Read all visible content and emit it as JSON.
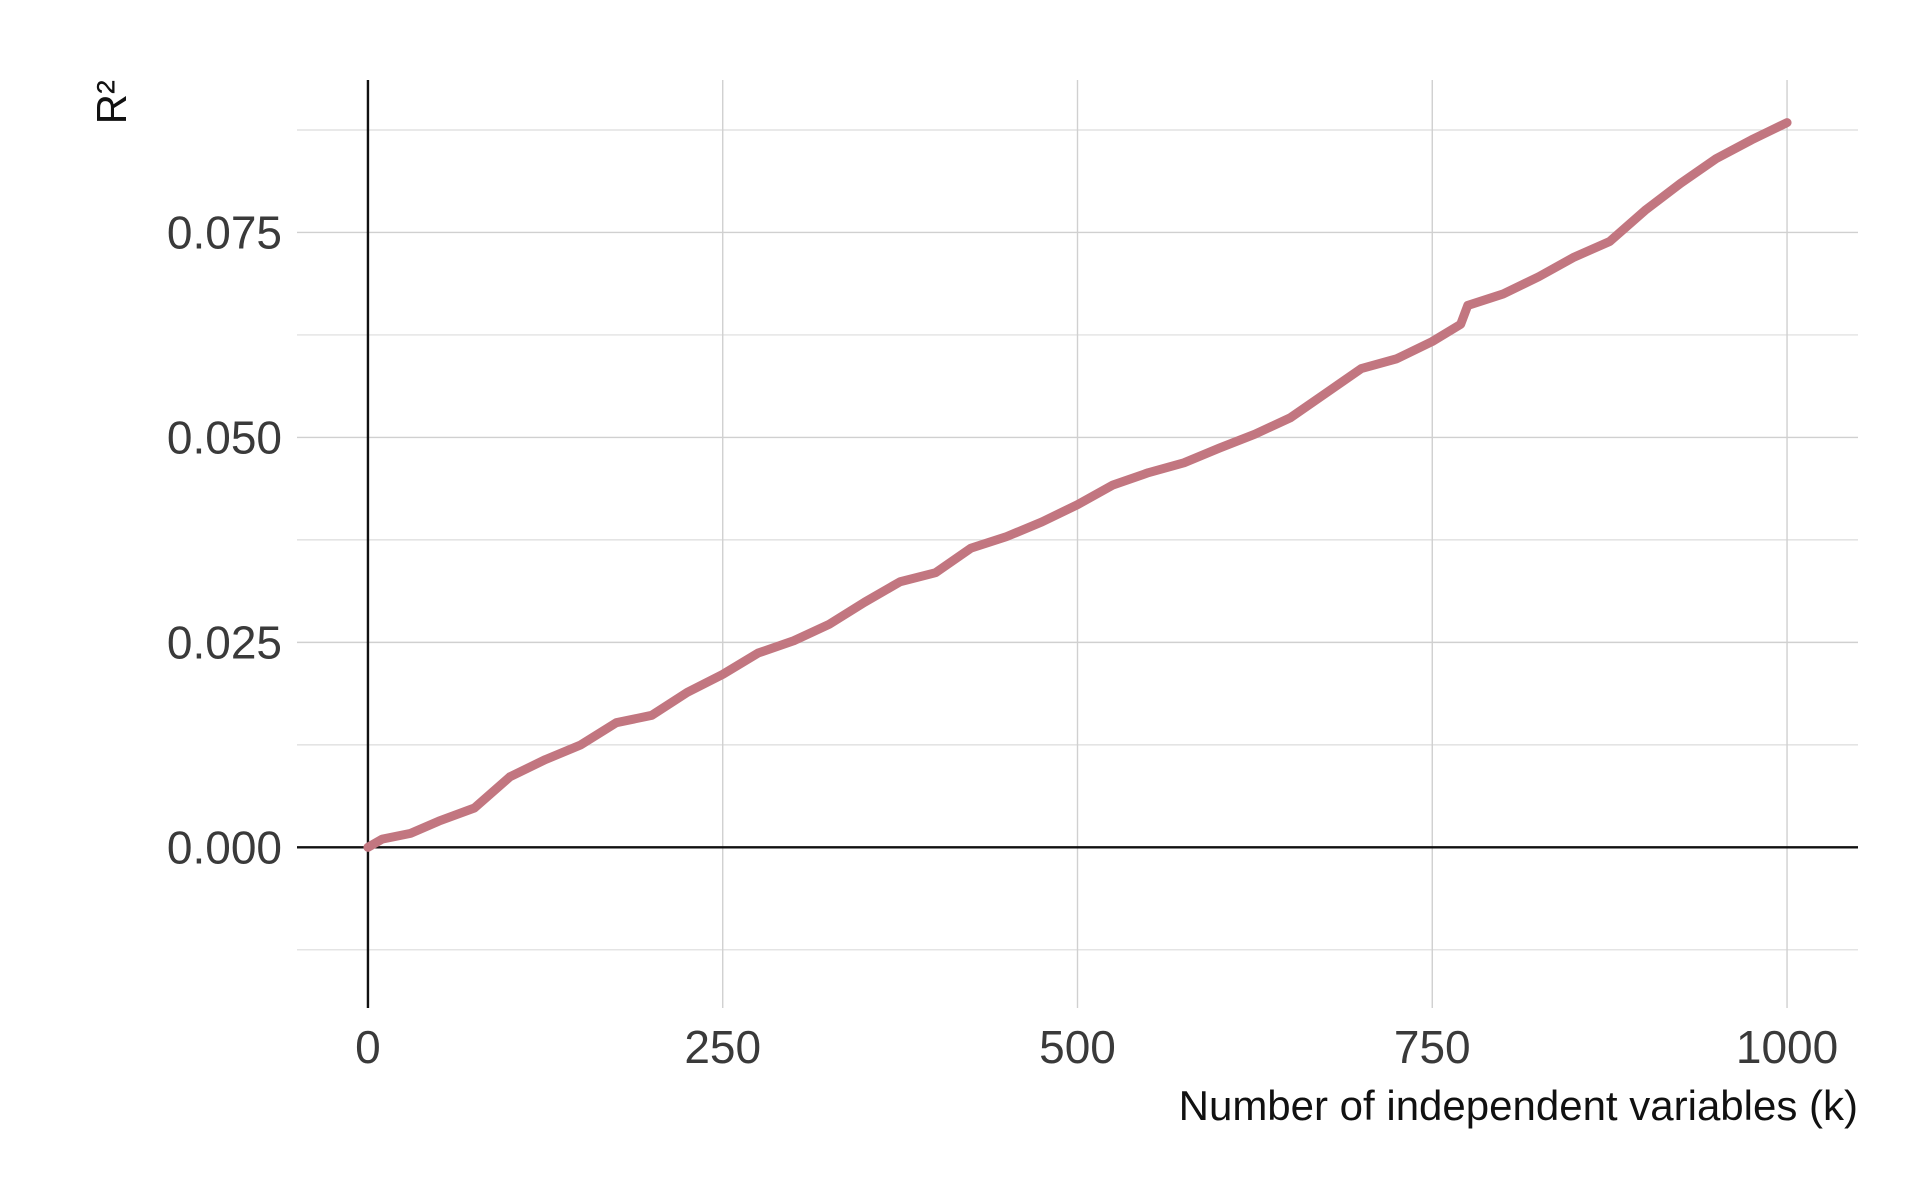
{
  "chart_data": {
    "type": "line",
    "x_label": "Number of independent variables (k)",
    "y_label": "R²",
    "x": [
      0,
      10,
      30,
      50,
      75,
      100,
      125,
      150,
      175,
      200,
      225,
      250,
      275,
      300,
      325,
      350,
      375,
      400,
      425,
      450,
      475,
      500,
      525,
      550,
      575,
      600,
      625,
      650,
      675,
      700,
      725,
      750,
      770,
      775,
      800,
      825,
      850,
      875,
      900,
      925,
      950,
      975,
      1000
    ],
    "series": [
      {
        "color": "#c27680",
        "values": [
          0,
          0.001,
          0.0017,
          0.0032,
          0.0048,
          0.0086,
          0.0107,
          0.0125,
          0.0152,
          0.0161,
          0.0189,
          0.0211,
          0.0237,
          0.0252,
          0.0272,
          0.0299,
          0.0324,
          0.0335,
          0.0365,
          0.0379,
          0.0397,
          0.0418,
          0.0442,
          0.0457,
          0.0469,
          0.0487,
          0.0504,
          0.0524,
          0.0554,
          0.0584,
          0.0596,
          0.0617,
          0.0638,
          0.0661,
          0.0675,
          0.0696,
          0.072,
          0.0739,
          0.0777,
          0.081,
          0.084,
          0.0863,
          0.0884
        ]
      }
    ],
    "xlim": [
      -50,
      1050
    ],
    "xticks": [
      0,
      250,
      500,
      750,
      1000
    ],
    "ylim": [
      -0.0196,
      0.0936
    ],
    "yticks": [
      {
        "value": 0,
        "label": "0.000"
      },
      {
        "value": 0.025,
        "label": "0.025"
      },
      {
        "value": 0.05,
        "label": "0.050"
      },
      {
        "value": 0.075,
        "label": "0.075"
      }
    ],
    "y_minor_ticks": [
      -0.0125,
      0.0125,
      0.0375,
      0.0625,
      0.0875
    ],
    "grid": true,
    "zero_lines": true
  }
}
